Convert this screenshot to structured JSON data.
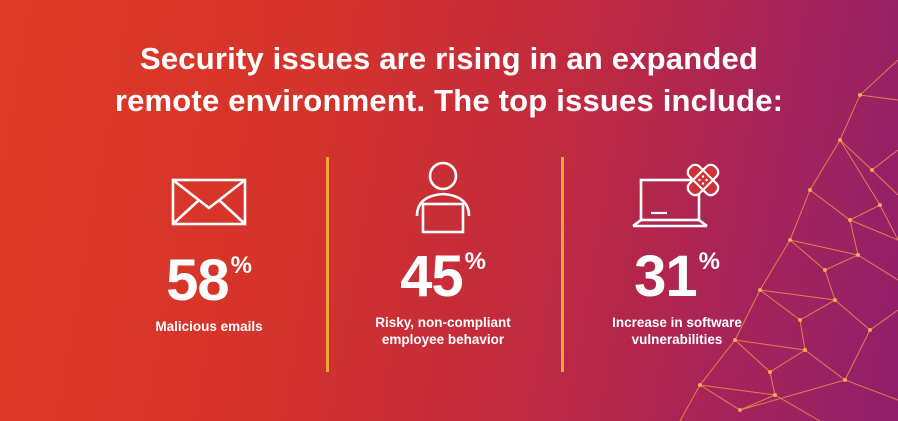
{
  "headline": {
    "line1": "Security issues are rising in an expanded",
    "line2": "remote environment. The top issues include:"
  },
  "stats": [
    {
      "icon": "envelope-icon",
      "value": "58",
      "unit": "%",
      "label_lines": [
        "Malicious emails"
      ]
    },
    {
      "icon": "person-at-laptop-icon",
      "value": "45",
      "unit": "%",
      "label_lines": [
        "Risky, non-compliant",
        "employee behavior"
      ]
    },
    {
      "icon": "laptop-bandage-icon",
      "value": "31",
      "unit": "%",
      "label_lines": [
        "Increase in software",
        "vulnerabilities"
      ]
    }
  ],
  "colors": {
    "gradient_start": "#e03a25",
    "gradient_end": "#8f1f6a",
    "accent_divider": "#f2a33a",
    "text": "#ffffff"
  }
}
